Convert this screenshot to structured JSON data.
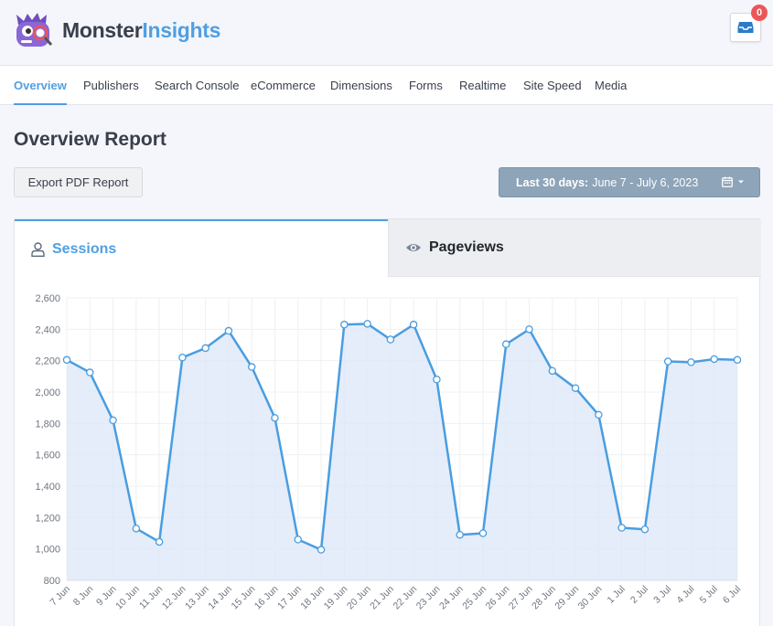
{
  "brand": {
    "name_part1": "Monster",
    "name_part2": "Insights"
  },
  "notifications": {
    "count": "0",
    "icon": "inbox-icon"
  },
  "nav": {
    "items": [
      {
        "label": "Overview",
        "active": true
      },
      {
        "label": "Publishers"
      },
      {
        "label": "Search Console"
      },
      {
        "label": "eCommerce"
      },
      {
        "label": "Dimensions"
      },
      {
        "label": "Forms"
      },
      {
        "label": "Realtime"
      },
      {
        "label": "Site Speed"
      },
      {
        "label": "Media"
      }
    ]
  },
  "page": {
    "title": "Overview Report",
    "export_label": "Export PDF Report",
    "date_range_label": "Last 30 days:",
    "date_range_value": "June 7 - July 6, 2023"
  },
  "tabs": {
    "sessions": "Sessions",
    "pageviews": "Pageviews"
  },
  "colors": {
    "accent": "#509fe2",
    "line": "#4a9de0",
    "area": "#dde9f8",
    "active_tab": "#509fe2"
  },
  "chart_data": {
    "type": "area",
    "title": "",
    "xlabel": "",
    "ylabel": "",
    "ylim": [
      800,
      2600
    ],
    "yticks": [
      800,
      1000,
      1200,
      1400,
      1600,
      1800,
      2000,
      2200,
      2400,
      2600
    ],
    "ytick_labels": [
      "800",
      "1,000",
      "1,200",
      "1,400",
      "1,600",
      "1,800",
      "2,000",
      "2,200",
      "2,400",
      "2,600"
    ],
    "grid": true,
    "categories": [
      "7 Jun",
      "8 Jun",
      "9 Jun",
      "10 Jun",
      "11 Jun",
      "12 Jun",
      "13 Jun",
      "14 Jun",
      "15 Jun",
      "16 Jun",
      "17 Jun",
      "18 Jun",
      "19 Jun",
      "20 Jun",
      "21 Jun",
      "22 Jun",
      "23 Jun",
      "24 Jun",
      "25 Jun",
      "26 Jun",
      "27 Jun",
      "28 Jun",
      "29 Jun",
      "30 Jun",
      "1 Jul",
      "2 Jul",
      "3 Jul",
      "4 Jul",
      "5 Jul",
      "6 Jul"
    ],
    "series": [
      {
        "values": [
          2205,
          2125,
          1820,
          1130,
          1045,
          2220,
          2280,
          2390,
          2160,
          1835,
          1060,
          995,
          2430,
          2435,
          2335,
          2430,
          2080,
          1090,
          1100,
          2305,
          2400,
          2135,
          2025,
          1855,
          1135,
          1125,
          2195,
          2190,
          2210,
          2205
        ]
      }
    ]
  }
}
